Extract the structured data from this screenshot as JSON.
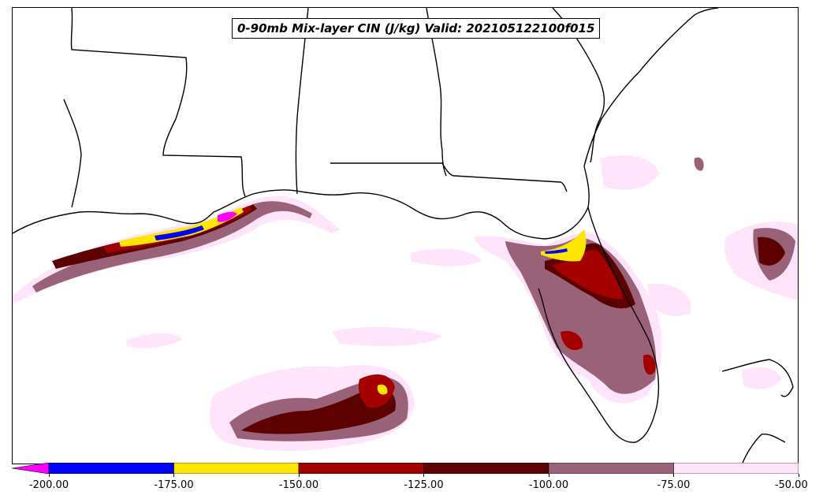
{
  "title": "0-90mb Mix-layer CIN (J/kg) Valid: 202105122100f015",
  "colorbar": {
    "extend": "min",
    "under_color": "#ff00ff",
    "bins": [
      {
        "from": -200,
        "to": -175,
        "color": "#0000ff"
      },
      {
        "from": -175,
        "to": -150,
        "color": "#ffe600"
      },
      {
        "from": -150,
        "to": -125,
        "color": "#a50000"
      },
      {
        "from": -125,
        "to": -100,
        "color": "#5c0000"
      },
      {
        "from": -100,
        "to": -75,
        "color": "#9a6278"
      },
      {
        "from": -75,
        "to": -50,
        "color": "#ffe4fc"
      }
    ],
    "tick_labels": [
      "-200.00",
      "-175.00",
      "-150.00",
      "-125.00",
      "-100.00",
      "-75.00",
      "-50.00"
    ]
  },
  "map": {
    "region": "Southeastern United States and Gulf of Mexico",
    "borders_color": "#000000",
    "land_color": "#ffffff"
  }
}
